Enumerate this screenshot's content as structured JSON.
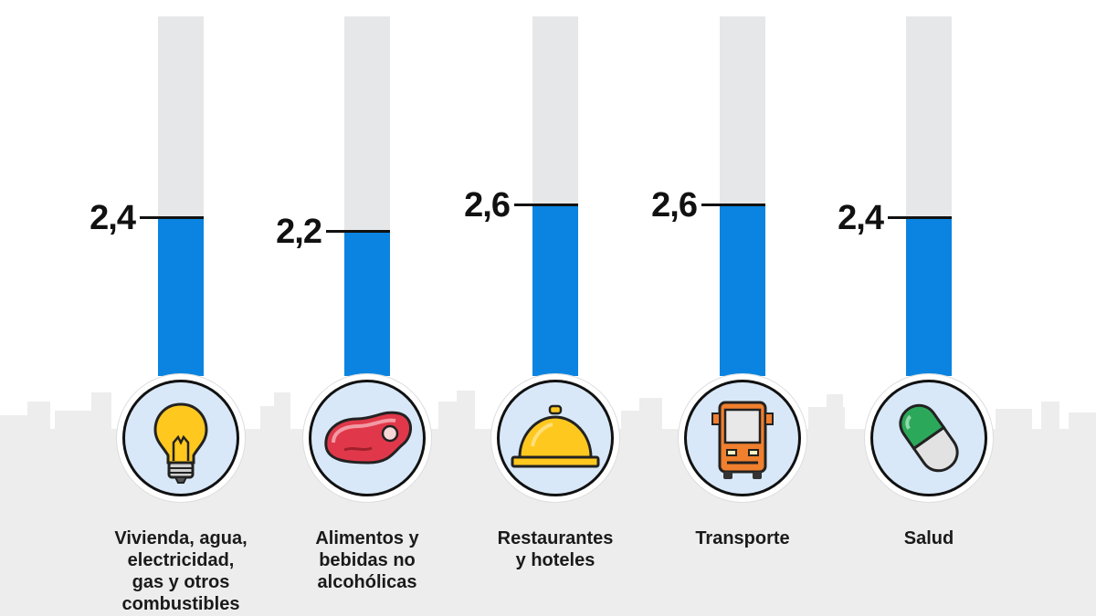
{
  "chart_data": {
    "type": "bar",
    "categories": [
      "Vivienda, agua, electricidad, gas y otros combustibles",
      "Alimentos y bebidas no alcohólicas",
      "Restaurantes y hoteles",
      "Transporte",
      "Salud"
    ],
    "category_lines": [
      [
        "Vivienda, agua,",
        "electricidad,",
        "gas y otros",
        "combustibles"
      ],
      [
        "Alimentos y",
        "bebidas no",
        "alcohólicas"
      ],
      [
        "Restaurantes",
        "y hoteles"
      ],
      [
        "Transporte"
      ],
      [
        "Salud"
      ]
    ],
    "values": [
      2.4,
      2.2,
      2.6,
      2.6,
      2.4
    ],
    "value_labels": [
      "2,4",
      "2,2",
      "2,6",
      "2,6",
      "2,4"
    ],
    "icons": [
      "lightbulb-icon",
      "meat-icon",
      "service-bell-icon",
      "bus-icon",
      "pill-icon"
    ],
    "ylim": [
      0,
      5.44
    ],
    "xlabel": "",
    "ylabel": "",
    "title": ""
  },
  "colors": {
    "fill": "#0a84e0",
    "track": "#e6e7e9",
    "icon_bg": "#d8e8f8",
    "skyline": "#eeeeee"
  }
}
